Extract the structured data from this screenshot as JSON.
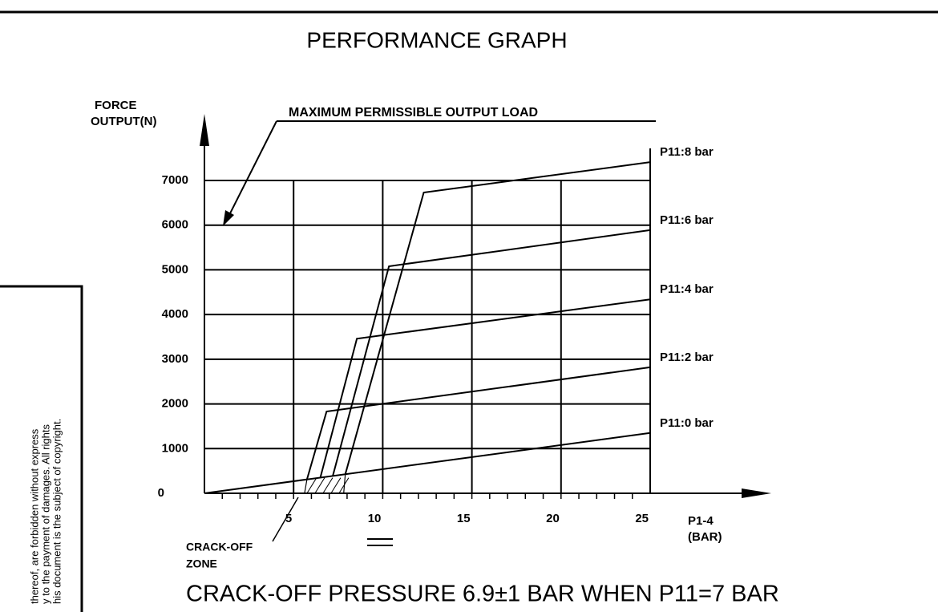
{
  "chart_data": {
    "type": "line",
    "title": "PERFORMANCE GRAPH",
    "y_label": [
      "FORCE",
      "OUTPUT(N)"
    ],
    "x_label": [
      "P1-4",
      "(BAR)"
    ],
    "annotations": [
      "MAXIMUM PERMISSIBLE OUTPUT LOAD",
      "CRACK-OFF",
      "ZONE"
    ],
    "footer": "CRACK-OFF PRESSURE 6.9±1 BAR WHEN P11=7 BAR",
    "side_note": [
      "thereof, are forbidden without express",
      "y to the payment of damages. All rights",
      "his document is the subject of copyright."
    ],
    "xlim": [
      0,
      25
    ],
    "ylim": [
      0,
      7000
    ],
    "xticks": [
      5,
      10,
      15,
      20,
      25
    ],
    "yticks": [
      0,
      1000,
      2000,
      3000,
      4000,
      5000,
      6000,
      7000
    ],
    "grid": true,
    "color": "#000000",
    "series": [
      {
        "name": "P11:8 bar",
        "x": [
          7.9,
          12.3,
          25
        ],
        "values": [
          425,
          6730,
          7410
        ]
      },
      {
        "name": "P11:6 bar",
        "x": [
          7.2,
          10.35,
          25
        ],
        "values": [
          390,
          5080,
          5890
        ]
      },
      {
        "name": "P11:4 bar",
        "x": [
          6.5,
          8.55,
          25
        ],
        "values": [
          350,
          3460,
          4340
        ]
      },
      {
        "name": "P11:2 bar",
        "x": [
          5.75,
          6.85,
          25
        ],
        "values": [
          310,
          1830,
          2820
        ]
      },
      {
        "name": "P11:0 bar",
        "x": [
          0,
          25
        ],
        "values": [
          0,
          1350
        ]
      }
    ]
  }
}
